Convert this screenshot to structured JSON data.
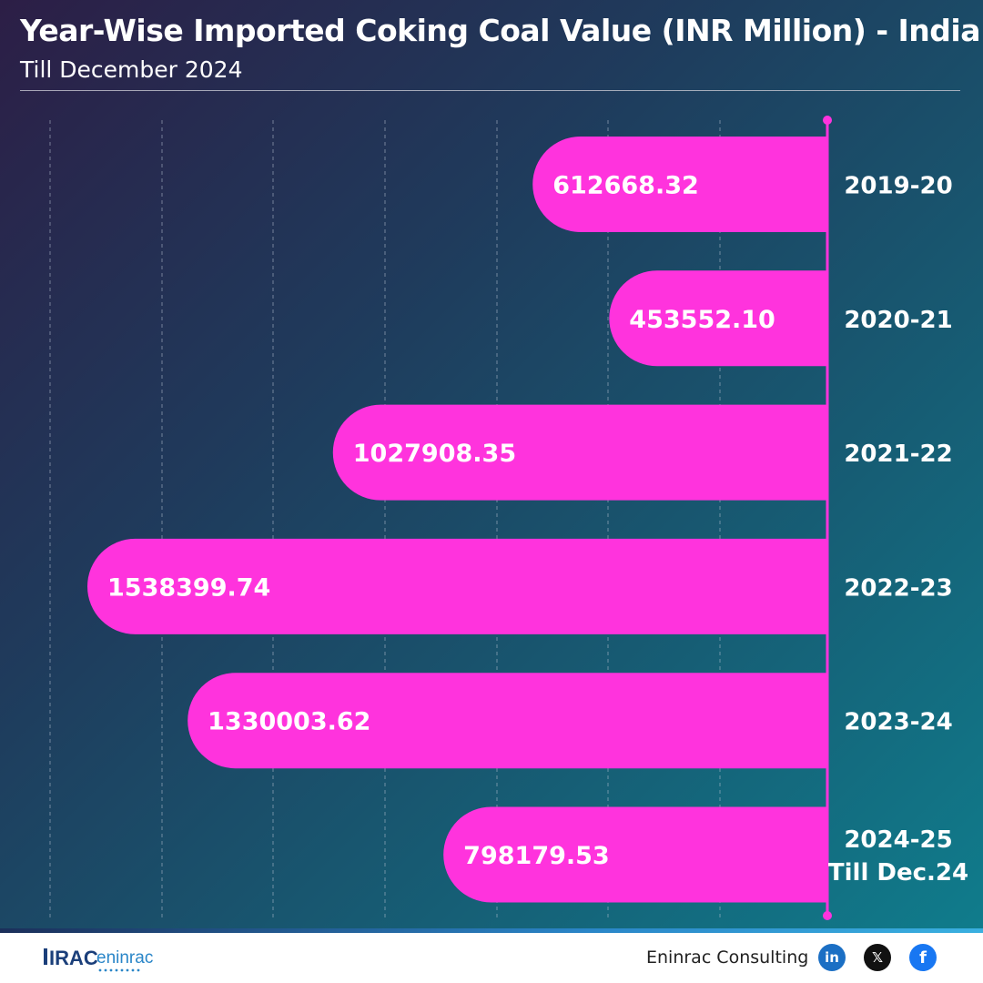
{
  "header": {
    "title": "Year-Wise Imported Coking Coal Value (INR Million) - India",
    "subtitle": "Till December 2024"
  },
  "chart_data": {
    "type": "bar",
    "orientation": "horizontal",
    "title": "Year-Wise Imported Coking Coal Value (INR Million) - India",
    "subtitle": "Till December 2024",
    "categories": [
      [
        "2019-20"
      ],
      [
        "2020-21"
      ],
      [
        "2021-22"
      ],
      [
        "2022-23"
      ],
      [
        "2023-24"
      ],
      [
        "2024-25",
        "Till Dec.24"
      ]
    ],
    "values": [
      612668.32,
      453552.1,
      1027908.35,
      1538399.74,
      1330003.62,
      798179.53
    ],
    "value_labels": [
      "612668.32",
      "453552.10",
      "1027908.35",
      "1538399.74",
      "1330003.62",
      "798179.53"
    ],
    "xlim": [
      0,
      1620000
    ],
    "grid": true,
    "bar_color": "#ff33dd",
    "axis_color": "#ff33dd"
  },
  "footer": {
    "logo_text_left": "IRAC",
    "logo_text_right": "eninrac",
    "company": "Eninrac Consulting",
    "social": [
      {
        "icon": "linkedin-icon",
        "glyph": "in"
      },
      {
        "icon": "x-icon",
        "glyph": "𝕏"
      },
      {
        "icon": "facebook-icon",
        "glyph": "f"
      }
    ]
  }
}
